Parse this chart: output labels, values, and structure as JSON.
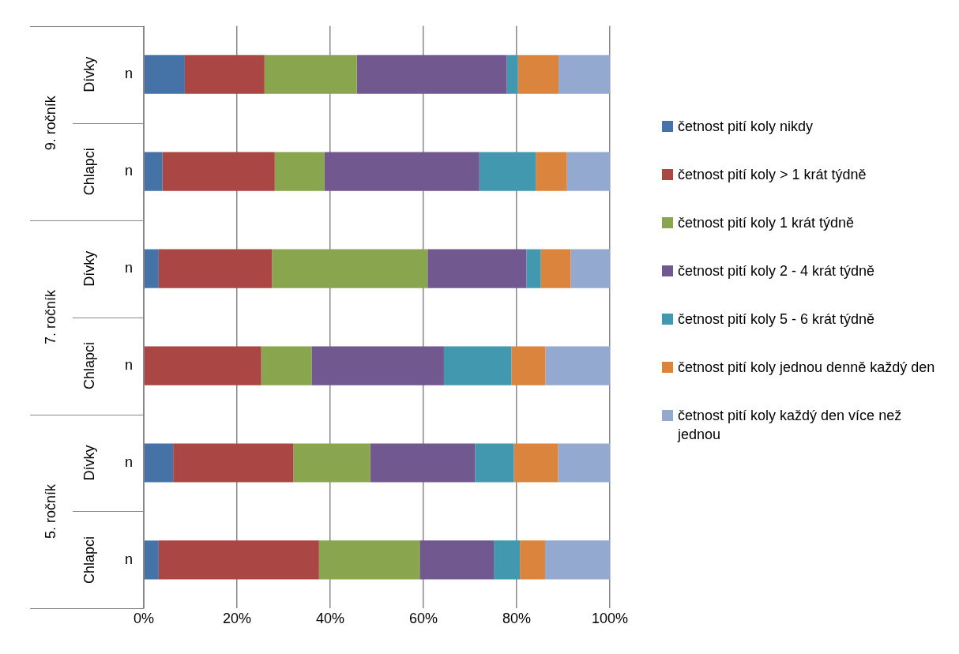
{
  "chart_data": {
    "type": "bar",
    "orientation": "horizontal",
    "stacked": true,
    "categories": [
      "n",
      "n",
      "n",
      "n",
      "n",
      "n"
    ],
    "series": [
      {
        "name": "četnost pití koly nikdy",
        "color": "#4572a7",
        "values": [
          8.8,
          4.0,
          3.2,
          0,
          6.3,
          3.2
        ]
      },
      {
        "name": "četnost pití koly  > 1 krát týdně",
        "color": "#aa4643",
        "values": [
          17.1,
          24.1,
          24.3,
          25.2,
          25.8,
          34.4
        ]
      },
      {
        "name": "četnost pití koly 1 krát týdně",
        "color": "#89a54e",
        "values": [
          19.8,
          10.7,
          33.4,
          10.8,
          16.5,
          21.6
        ]
      },
      {
        "name": "četnost pití koly 2 - 4 krát týdně",
        "color": "#71588f",
        "values": [
          32.2,
          33.2,
          21.2,
          28.4,
          22.5,
          15.9
        ]
      },
      {
        "name": "četnost pití koly 5 - 6 krát týdně",
        "color": "#4198af",
        "values": [
          2.4,
          12.1,
          3.1,
          14.5,
          8.3,
          5.6
        ]
      },
      {
        "name": "četnost pití koly jednou denně každý den",
        "color": "#db843d",
        "values": [
          8.7,
          6.7,
          6.4,
          7.3,
          9.5,
          5.4
        ]
      },
      {
        "name": "četnost pití koly každý den více než jednou",
        "color": "#93a9cf",
        "values": [
          11.0,
          9.2,
          8.4,
          13.8,
          11.1,
          13.9
        ]
      }
    ],
    "annotations": [
      "Dívky",
      "Chlapci",
      "Dívky",
      "Chlapci",
      "Dívky",
      "Chlapci",
      "9. ročník",
      "7. ročník",
      "5. ročník"
    ],
    "xlim": [
      0,
      100
    ],
    "xticks": [
      {
        "value": 0,
        "label": "0%"
      },
      {
        "value": 20,
        "label": "20%"
      },
      {
        "value": 40,
        "label": "40%"
      },
      {
        "value": 60,
        "label": "60%"
      },
      {
        "value": 80,
        "label": "80%"
      },
      {
        "value": 100,
        "label": "100%"
      }
    ],
    "grid": "x",
    "legend": "right"
  }
}
